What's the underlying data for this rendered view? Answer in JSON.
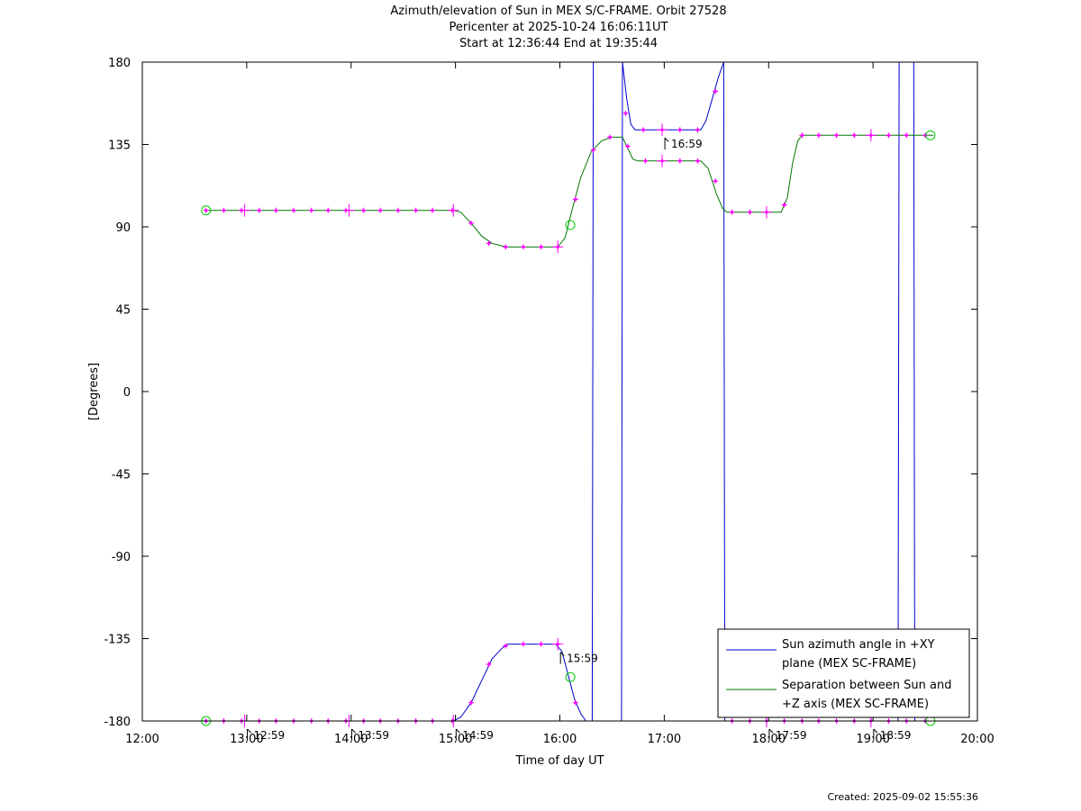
{
  "chart_data": {
    "type": "line",
    "title": "Azimuth/elevation of Sun in MEX S/C-FRAME.  Orbit 27528",
    "subtitle1": "Pericenter at 2025-10-24 16:06:11UT",
    "subtitle2": "Start at 12:36:44 End at 19:35:44",
    "xlabel": "Time of day UT",
    "ylabel": "[Degrees]",
    "xlim": [
      12.0,
      20.0
    ],
    "ylim": [
      -180,
      180
    ],
    "x_ticks": [
      "12:00",
      "13:00",
      "14:00",
      "15:00",
      "16:00",
      "17:00",
      "18:00",
      "19:00",
      "20:00"
    ],
    "y_ticks": [
      "180",
      "135",
      "90",
      "45",
      "0",
      "-45",
      "-90",
      "-135",
      "-180"
    ],
    "grid": false,
    "legend_position": "bottom-right",
    "series": [
      {
        "name": "Sun azimuth angle in +XY plane (MEX SC-FRAME)",
        "legend_lines": [
          "Sun azimuth angle in +XY",
          "plane (MEX SC-FRAME)"
        ],
        "color": "#0000cc",
        "segments": [
          [
            [
              12.61,
              -180
            ],
            [
              14.98,
              -180
            ],
            [
              15.05,
              -178
            ],
            [
              15.15,
              -170
            ],
            [
              15.25,
              -158
            ],
            [
              15.35,
              -146
            ],
            [
              15.45,
              -140
            ],
            [
              15.5,
              -138
            ],
            [
              15.96,
              -138
            ],
            [
              16.02,
              -142
            ],
            [
              16.08,
              -155
            ],
            [
              16.14,
              -168
            ],
            [
              16.2,
              -176
            ],
            [
              16.25,
              -180
            ],
            [
              16.31,
              -180
            ]
          ],
          [
            [
              16.31,
              -180
            ],
            [
              16.32,
              180
            ]
          ],
          [
            [
              16.32,
              -180
            ],
            [
              16.59,
              -180
            ]
          ],
          [
            [
              16.59,
              -180
            ],
            [
              16.6,
              180
            ]
          ],
          [
            [
              16.6,
              180
            ],
            [
              16.64,
              160
            ],
            [
              16.68,
              146
            ],
            [
              16.72,
              143
            ],
            [
              17.35,
              143
            ],
            [
              17.4,
              148
            ],
            [
              17.47,
              162
            ],
            [
              17.52,
              172
            ],
            [
              17.57,
              180
            ]
          ],
          [
            [
              17.57,
              180
            ],
            [
              17.58,
              -180
            ]
          ],
          [
            [
              17.59,
              -180
            ],
            [
              19.24,
              -180
            ]
          ],
          [
            [
              19.24,
              -180
            ],
            [
              19.25,
              180
            ]
          ],
          [
            [
              19.39,
              180
            ],
            [
              19.4,
              -180
            ]
          ],
          [
            [
              19.4,
              -180
            ],
            [
              19.58,
              -180
            ]
          ]
        ],
        "markers": [
          [
            12.61,
            -180
          ],
          [
            12.78,
            -180
          ],
          [
            12.95,
            -180
          ],
          [
            13.12,
            -180
          ],
          [
            13.28,
            -180
          ],
          [
            13.45,
            -180
          ],
          [
            13.62,
            -180
          ],
          [
            13.78,
            -180
          ],
          [
            13.95,
            -180
          ],
          [
            14.12,
            -180
          ],
          [
            14.28,
            -180
          ],
          [
            14.45,
            -180
          ],
          [
            14.62,
            -180
          ],
          [
            14.78,
            -180
          ],
          [
            14.97,
            -180
          ],
          [
            15.15,
            -170
          ],
          [
            15.32,
            -149
          ],
          [
            15.48,
            -139
          ],
          [
            15.65,
            -138
          ],
          [
            15.82,
            -138
          ],
          [
            15.98,
            -138
          ],
          [
            16.15,
            -170
          ],
          [
            16.63,
            152
          ],
          [
            16.8,
            143
          ],
          [
            16.98,
            143
          ],
          [
            17.15,
            143
          ],
          [
            17.32,
            143
          ],
          [
            17.49,
            164
          ],
          [
            17.65,
            -180
          ],
          [
            17.82,
            -180
          ],
          [
            17.98,
            -180
          ],
          [
            18.15,
            -180
          ],
          [
            18.32,
            -180
          ],
          [
            18.48,
            -180
          ],
          [
            18.65,
            -180
          ],
          [
            18.82,
            -180
          ],
          [
            18.98,
            -180
          ],
          [
            19.15,
            -180
          ],
          [
            19.32,
            -180
          ],
          [
            19.5,
            -180
          ]
        ],
        "big_ticks": [
          [
            12.98,
            -180
          ],
          [
            13.98,
            -180
          ],
          [
            14.98,
            -180
          ],
          [
            15.98,
            -138
          ],
          [
            16.98,
            143
          ],
          [
            17.98,
            -180
          ],
          [
            18.98,
            -180
          ]
        ]
      },
      {
        "name": "Separation between Sun and +Z axis (MEX SC-FRAME)",
        "legend_lines": [
          "Separation between Sun and",
          "+Z axis (MEX SC-FRAME)"
        ],
        "color": "#007700",
        "segments": [
          [
            [
              12.61,
              99
            ],
            [
              14.98,
              99
            ],
            [
              15.05,
              98
            ],
            [
              15.15,
              92
            ],
            [
              15.25,
              85
            ],
            [
              15.35,
              81
            ],
            [
              15.45,
              79.5
            ],
            [
              15.5,
              79
            ],
            [
              15.98,
              79
            ],
            [
              16.05,
              84
            ],
            [
              16.12,
              100
            ],
            [
              16.2,
              117
            ],
            [
              16.3,
              131
            ],
            [
              16.4,
              137
            ],
            [
              16.5,
              139
            ],
            [
              16.6,
              139
            ],
            [
              16.65,
              133
            ],
            [
              16.7,
              127
            ],
            [
              16.75,
              126
            ],
            [
              17.35,
              126
            ],
            [
              17.42,
              122
            ],
            [
              17.5,
              108
            ],
            [
              17.56,
              100
            ],
            [
              17.6,
              98
            ],
            [
              18.12,
              98
            ],
            [
              18.18,
              106
            ],
            [
              18.23,
              125
            ],
            [
              18.28,
              137
            ],
            [
              18.32,
              140
            ],
            [
              19.58,
              140
            ]
          ]
        ],
        "markers": [
          [
            12.61,
            99
          ],
          [
            12.78,
            99
          ],
          [
            12.95,
            99
          ],
          [
            13.12,
            99
          ],
          [
            13.28,
            99
          ],
          [
            13.45,
            99
          ],
          [
            13.62,
            99
          ],
          [
            13.78,
            99
          ],
          [
            13.95,
            99
          ],
          [
            14.12,
            99
          ],
          [
            14.28,
            99
          ],
          [
            14.45,
            99
          ],
          [
            14.62,
            99
          ],
          [
            14.78,
            99
          ],
          [
            14.97,
            99
          ],
          [
            15.15,
            92
          ],
          [
            15.32,
            81
          ],
          [
            15.48,
            79
          ],
          [
            15.65,
            79
          ],
          [
            15.82,
            79
          ],
          [
            15.98,
            79
          ],
          [
            16.15,
            105
          ],
          [
            16.32,
            132
          ],
          [
            16.48,
            139
          ],
          [
            16.65,
            134
          ],
          [
            16.82,
            126
          ],
          [
            16.98,
            126
          ],
          [
            17.15,
            126
          ],
          [
            17.32,
            126
          ],
          [
            17.49,
            115
          ],
          [
            17.65,
            98
          ],
          [
            17.82,
            98
          ],
          [
            17.98,
            98
          ],
          [
            18.15,
            102
          ],
          [
            18.32,
            140
          ],
          [
            18.48,
            140
          ],
          [
            18.65,
            140
          ],
          [
            18.82,
            140
          ],
          [
            18.98,
            140
          ],
          [
            19.15,
            140
          ],
          [
            19.32,
            140
          ],
          [
            19.5,
            140
          ]
        ],
        "big_ticks": [
          [
            12.98,
            99
          ],
          [
            13.98,
            99
          ],
          [
            14.98,
            99
          ],
          [
            15.98,
            79
          ],
          [
            16.98,
            126
          ],
          [
            17.98,
            98
          ],
          [
            18.98,
            140
          ]
        ]
      }
    ],
    "circle_markers": [
      [
        12.61,
        99
      ],
      [
        12.61,
        -180
      ],
      [
        16.1,
        91
      ],
      [
        16.1,
        -156
      ],
      [
        19.55,
        140
      ],
      [
        19.55,
        -180
      ]
    ],
    "time_annotations": [
      {
        "x": 12.98,
        "y": -180,
        "label": "12:59"
      },
      {
        "x": 13.98,
        "y": -180,
        "label": "13:59"
      },
      {
        "x": 14.98,
        "y": -180,
        "label": "14:59"
      },
      {
        "x": 15.98,
        "y": -138,
        "label": "15:59"
      },
      {
        "x": 16.98,
        "y": 143,
        "label": "16:59"
      },
      {
        "x": 17.98,
        "y": -180,
        "label": "17:59"
      },
      {
        "x": 18.98,
        "y": -180,
        "label": "18:59"
      }
    ],
    "marker_color": "#ff00ff",
    "circle_color": "#00cc00"
  },
  "footer": {
    "created": "Created: 2025-09-02 15:55:36"
  }
}
